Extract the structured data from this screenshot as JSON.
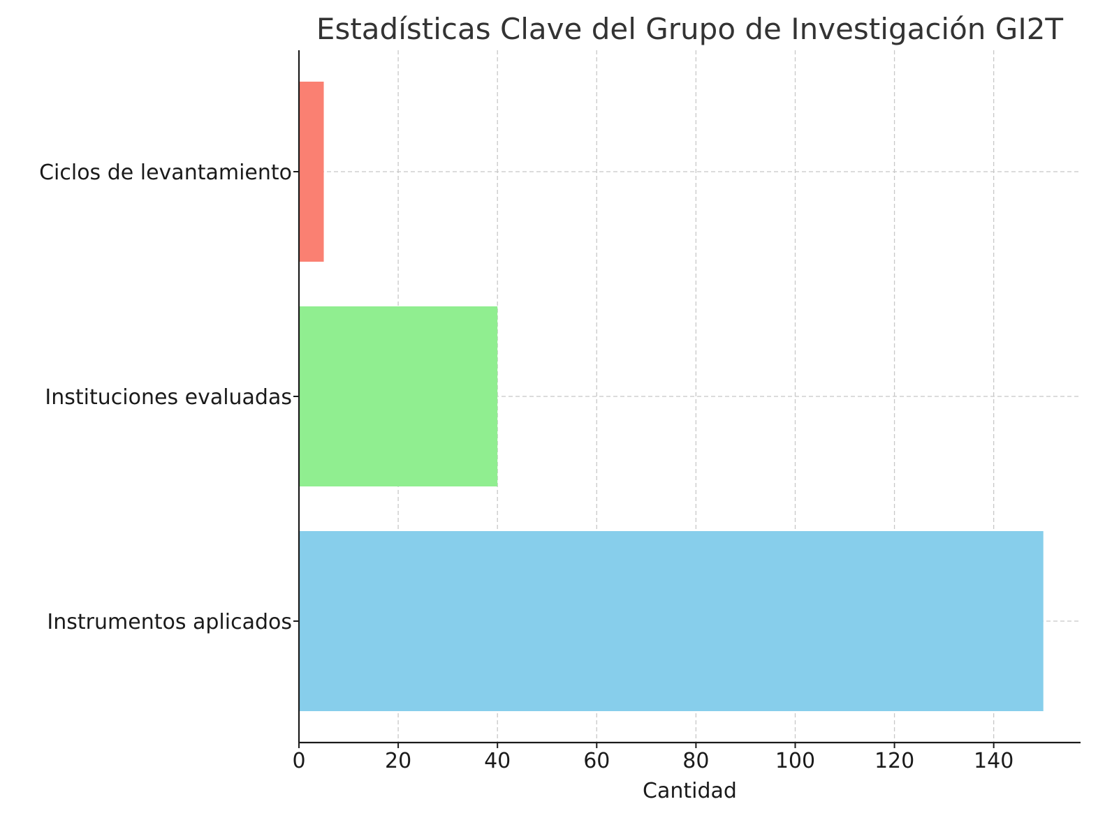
{
  "chart_data": {
    "type": "bar",
    "orientation": "horizontal",
    "title": "Estadísticas Clave del Grupo de Investigación GI2T",
    "xlabel": "Cantidad",
    "ylabel": "",
    "categories": [
      "Instrumentos aplicados",
      "Instituciones evaluadas",
      "Ciclos de levantamiento"
    ],
    "values": [
      150,
      40,
      5
    ],
    "colors": [
      "#87CEEB",
      "#90EE90",
      "#FA8072"
    ],
    "xlim": [
      0,
      157.5
    ],
    "xticks": [
      0,
      20,
      40,
      60,
      80,
      100,
      120,
      140
    ],
    "xtick_labels": [
      "0",
      "20",
      "40",
      "60",
      "80",
      "100",
      "120",
      "140"
    ],
    "grid": true,
    "legend": "none"
  }
}
